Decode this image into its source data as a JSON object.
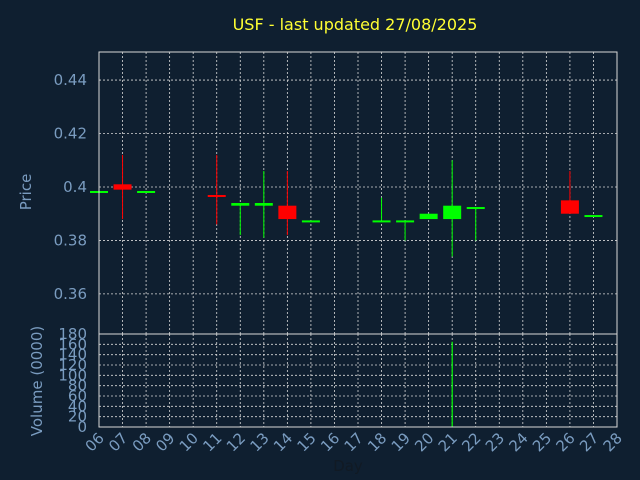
{
  "chart_data": [
    {
      "type": "candlestick",
      "title": "USF - last updated 27/08/2025",
      "ylabel": "Price",
      "ylim": [
        0.345,
        0.4505
      ],
      "yticks": [
        "0.36",
        "0.38",
        "0.4",
        "0.42",
        "0.44"
      ],
      "ytick_values": [
        0.36,
        0.38,
        0.4,
        0.42,
        0.44
      ],
      "grid": true,
      "candles": [
        {
          "day": "06",
          "open": 0.3985,
          "high": 0.3985,
          "low": 0.3985,
          "close": 0.3985
        },
        {
          "day": "07",
          "open": 0.401,
          "high": 0.412,
          "low": 0.388,
          "close": 0.399
        },
        {
          "day": "08",
          "open": 0.3985,
          "high": 0.3985,
          "low": 0.3985,
          "close": 0.3985
        },
        {
          "day": "11",
          "open": 0.397,
          "high": 0.412,
          "low": 0.386,
          "close": 0.3965
        },
        {
          "day": "12",
          "open": 0.393,
          "high": 0.394,
          "low": 0.382,
          "close": 0.394
        },
        {
          "day": "13",
          "open": 0.393,
          "high": 0.406,
          "low": 0.381,
          "close": 0.394
        },
        {
          "day": "14",
          "open": 0.393,
          "high": 0.406,
          "low": 0.382,
          "close": 0.388
        },
        {
          "day": "15",
          "open": 0.3875,
          "high": 0.3875,
          "low": 0.3875,
          "close": 0.3875
        },
        {
          "day": "18",
          "open": 0.3875,
          "high": 0.396,
          "low": 0.3875,
          "close": 0.3875
        },
        {
          "day": "19",
          "open": 0.3875,
          "high": 0.3875,
          "low": 0.38,
          "close": 0.3875
        },
        {
          "day": "20",
          "open": 0.388,
          "high": 0.39,
          "low": 0.388,
          "close": 0.39
        },
        {
          "day": "21",
          "open": 0.388,
          "high": 0.41,
          "low": 0.374,
          "close": 0.393
        },
        {
          "day": "22",
          "open": 0.3925,
          "high": 0.3925,
          "low": 0.38,
          "close": 0.3925
        },
        {
          "day": "26",
          "open": 0.395,
          "high": 0.406,
          "low": 0.39,
          "close": 0.39
        },
        {
          "day": "27",
          "open": 0.3895,
          "high": 0.3895,
          "low": 0.3895,
          "close": 0.3895
        }
      ],
      "colors": {
        "up": "#00ff00",
        "down": "#ff0000",
        "flat": "#00ff00"
      }
    },
    {
      "type": "bar",
      "ylabel": "Volume (0000)",
      "xlabel": "Day",
      "ylim": [
        0,
        180
      ],
      "yticks": [
        "0",
        "20",
        "40",
        "60",
        "80",
        "100",
        "120",
        "140",
        "160",
        "180"
      ],
      "ytick_values": [
        0,
        20,
        40,
        60,
        80,
        100,
        120,
        140,
        160,
        180
      ],
      "categories": [
        "06",
        "07",
        "08",
        "09",
        "10",
        "11",
        "12",
        "13",
        "14",
        "15",
        "16",
        "17",
        "18",
        "19",
        "20",
        "21",
        "22",
        "23",
        "24",
        "25",
        "26",
        "27",
        "28"
      ],
      "values": [
        0,
        0,
        0,
        0,
        0,
        0,
        0,
        0,
        0,
        0,
        0,
        0,
        0,
        0,
        0,
        165,
        0,
        0,
        0,
        0,
        0,
        0,
        0
      ],
      "bar_color": "#00ff00",
      "grid": true
    }
  ]
}
